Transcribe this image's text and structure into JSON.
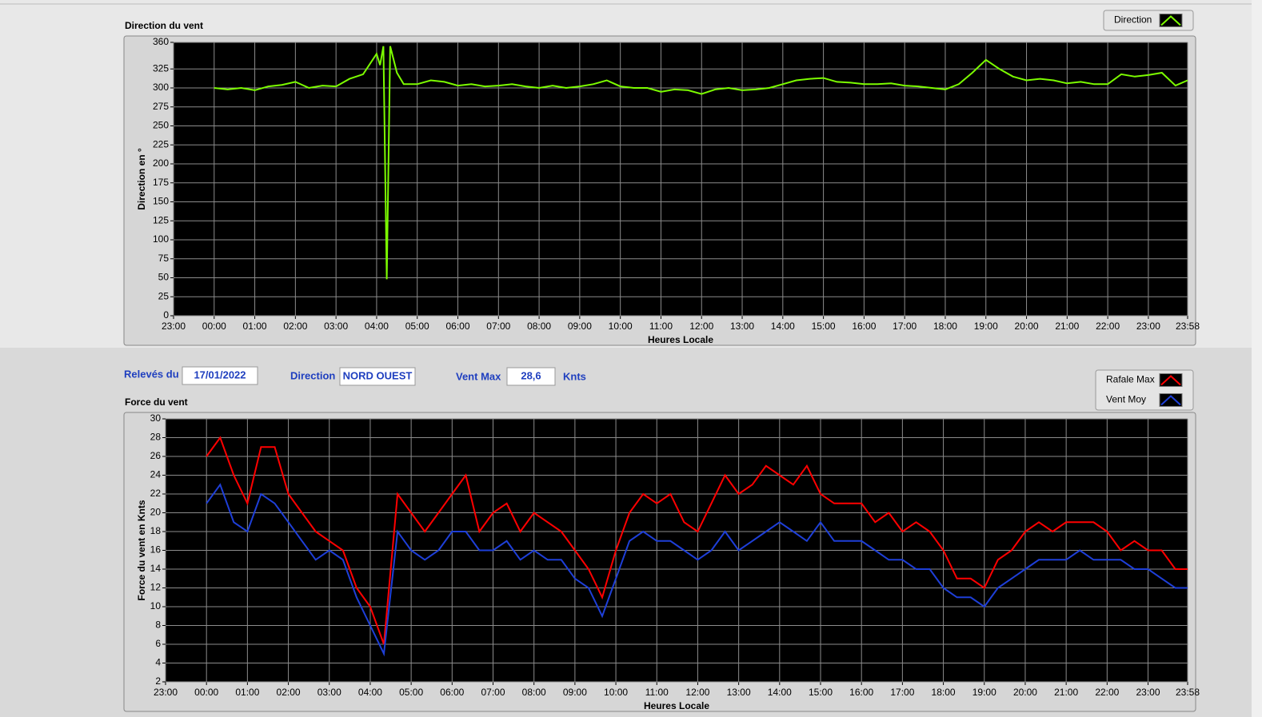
{
  "chart_data": [
    {
      "type": "line",
      "title": "Direction du vent",
      "ylabel": "Direction en °",
      "xlabel": "Heures Locale",
      "x": [
        "00:00",
        "00:20",
        "00:40",
        "01:00",
        "01:20",
        "01:40",
        "02:00",
        "02:20",
        "02:40",
        "03:00",
        "03:20",
        "03:40",
        "04:00",
        "04:05",
        "04:10",
        "04:15",
        "04:20",
        "04:30",
        "04:40",
        "05:00",
        "05:20",
        "05:40",
        "06:00",
        "06:20",
        "06:40",
        "07:00",
        "07:20",
        "07:40",
        "08:00",
        "08:20",
        "08:40",
        "09:00",
        "09:20",
        "09:40",
        "10:00",
        "10:20",
        "10:40",
        "11:00",
        "11:20",
        "11:40",
        "12:00",
        "12:20",
        "12:40",
        "13:00",
        "13:20",
        "13:40",
        "14:00",
        "14:20",
        "14:40",
        "15:00",
        "15:20",
        "15:40",
        "16:00",
        "16:20",
        "16:40",
        "17:00",
        "17:20",
        "17:40",
        "18:00",
        "18:20",
        "18:40",
        "19:00",
        "19:20",
        "19:40",
        "20:00",
        "20:20",
        "20:40",
        "21:00",
        "21:20",
        "21:40",
        "22:00",
        "22:20",
        "22:40",
        "23:00",
        "23:20",
        "23:40",
        "23:58"
      ],
      "series": [
        {
          "name": "Direction",
          "color": "#7cfc00",
          "values": [
            300,
            298,
            300,
            297,
            302,
            304,
            308,
            300,
            303,
            302,
            312,
            318,
            345,
            330,
            355,
            48,
            355,
            320,
            305,
            305,
            310,
            308,
            303,
            305,
            302,
            303,
            305,
            302,
            300,
            303,
            300,
            302,
            305,
            310,
            302,
            300,
            300,
            295,
            298,
            297,
            292,
            298,
            300,
            297,
            298,
            300,
            305,
            310,
            312,
            313,
            308,
            307,
            305,
            305,
            306,
            303,
            302,
            300,
            298,
            305,
            320,
            337,
            325,
            315,
            310,
            312,
            310,
            306,
            308,
            305,
            305,
            318,
            315,
            317,
            320,
            303,
            310
          ]
        }
      ],
      "xlim": [
        "23:00",
        "23:58"
      ],
      "xticks": [
        "23:00",
        "00:00",
        "01:00",
        "02:00",
        "03:00",
        "04:00",
        "05:00",
        "06:00",
        "07:00",
        "08:00",
        "09:00",
        "10:00",
        "11:00",
        "12:00",
        "13:00",
        "14:00",
        "15:00",
        "16:00",
        "17:00",
        "18:00",
        "19:00",
        "20:00",
        "21:00",
        "22:00",
        "23:00",
        "23:58"
      ],
      "ylim": [
        0,
        360
      ],
      "yticks": [
        0,
        25,
        50,
        75,
        100,
        125,
        150,
        175,
        200,
        225,
        250,
        275,
        300,
        325,
        360
      ],
      "grid": true
    },
    {
      "type": "line",
      "title": "Force du vent",
      "ylabel": "Force du vent en Knts",
      "xlabel": "Heures Locale",
      "x": [
        "00:00",
        "00:20",
        "00:40",
        "01:00",
        "01:20",
        "01:40",
        "02:00",
        "02:20",
        "02:40",
        "03:00",
        "03:20",
        "03:40",
        "04:00",
        "04:20",
        "04:40",
        "05:00",
        "05:20",
        "05:40",
        "06:00",
        "06:20",
        "06:40",
        "07:00",
        "07:20",
        "07:40",
        "08:00",
        "08:20",
        "08:40",
        "09:00",
        "09:20",
        "09:40",
        "10:00",
        "10:20",
        "10:40",
        "11:00",
        "11:20",
        "11:40",
        "12:00",
        "12:20",
        "12:40",
        "13:00",
        "13:20",
        "13:40",
        "14:00",
        "14:20",
        "14:40",
        "15:00",
        "15:20",
        "15:40",
        "16:00",
        "16:20",
        "16:40",
        "17:00",
        "17:20",
        "17:40",
        "18:00",
        "18:20",
        "18:40",
        "19:00",
        "19:20",
        "19:40",
        "20:00",
        "20:20",
        "20:40",
        "21:00",
        "21:20",
        "21:40",
        "22:00",
        "22:20",
        "22:40",
        "23:00",
        "23:20",
        "23:40",
        "23:58"
      ],
      "series": [
        {
          "name": "Rafale Max",
          "color": "#ff0000",
          "values": [
            26,
            28,
            24,
            21,
            27,
            27,
            22,
            20,
            18,
            17,
            16,
            12,
            10,
            6,
            22,
            20,
            18,
            20,
            22,
            24,
            18,
            20,
            21,
            18,
            20,
            19,
            18,
            16,
            14,
            11,
            16,
            20,
            22,
            21,
            22,
            19,
            18,
            21,
            24,
            22,
            23,
            25,
            24,
            23,
            25,
            22,
            21,
            21,
            21,
            19,
            20,
            18,
            19,
            18,
            16,
            13,
            13,
            12,
            15,
            16,
            18,
            19,
            18,
            19,
            19,
            19,
            18,
            16,
            17,
            16,
            16,
            14,
            14
          ]
        },
        {
          "name": "Vent Moy",
          "color": "#1e3fd8",
          "values": [
            21,
            23,
            19,
            18,
            22,
            21,
            19,
            17,
            15,
            16,
            15,
            11,
            8,
            5,
            18,
            16,
            15,
            16,
            18,
            18,
            16,
            16,
            17,
            15,
            16,
            15,
            15,
            13,
            12,
            9,
            13,
            17,
            18,
            17,
            17,
            16,
            15,
            16,
            18,
            16,
            17,
            18,
            19,
            18,
            17,
            19,
            17,
            17,
            17,
            16,
            15,
            15,
            14,
            14,
            12,
            11,
            11,
            10,
            12,
            13,
            14,
            15,
            15,
            15,
            16,
            15,
            15,
            15,
            14,
            14,
            13,
            12,
            12
          ]
        }
      ],
      "xlim": [
        "23:00",
        "23:58"
      ],
      "xticks": [
        "23:00",
        "00:00",
        "01:00",
        "02:00",
        "03:00",
        "04:00",
        "05:00",
        "06:00",
        "07:00",
        "08:00",
        "09:00",
        "10:00",
        "11:00",
        "12:00",
        "13:00",
        "14:00",
        "15:00",
        "16:00",
        "17:00",
        "18:00",
        "19:00",
        "20:00",
        "21:00",
        "22:00",
        "23:00",
        "23:58"
      ],
      "ylim": [
        2,
        30
      ],
      "yticks": [
        2,
        4,
        6,
        8,
        10,
        12,
        14,
        16,
        18,
        20,
        22,
        24,
        26,
        28,
        30
      ],
      "grid": true
    }
  ],
  "controls": {
    "date_label": "Relevés du",
    "date": "17/01/2022",
    "direction_label": "Direction",
    "direction": "NORD OUEST",
    "vent_max_label": "Vent Max",
    "vent_max": "28,6",
    "unit": "Knts"
  }
}
